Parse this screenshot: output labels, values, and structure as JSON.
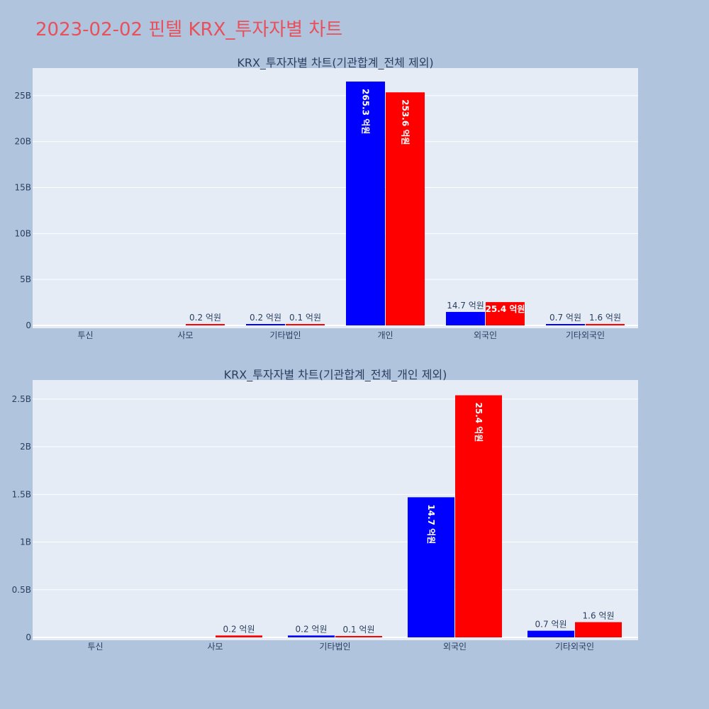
{
  "page": {
    "title": "2023-02-02 핀텔 KRX_투자자별 차트",
    "background": "#b0c4de",
    "plot_background": "#e5ecf6",
    "title_color": "#e8505b"
  },
  "colors": {
    "buy": "#0000ff",
    "sell": "#ff0000"
  },
  "chart_data": [
    {
      "type": "bar",
      "title": "KRX_투자자별 차트(기관합계_전체 제외)",
      "categories": [
        "투신",
        "사모",
        "기타법인",
        "개인",
        "외국인",
        "기타외국인"
      ],
      "series": [
        {
          "values": [
            0,
            0,
            20000000,
            26530000000,
            1470000000,
            70000000
          ],
          "labels": [
            "",
            "",
            "0.2 억원",
            "265.3 억원",
            "14.7 억원",
            "0.7 억원"
          ]
        },
        {
          "values": [
            0,
            20000000,
            10000000,
            25360000000,
            2540000000,
            160000000
          ],
          "labels": [
            "",
            "0.2 억원",
            "0.1 억원",
            "253.6 억원",
            "25.4 억원",
            "1.6 억원"
          ]
        }
      ],
      "ylim": [
        0,
        28000000000
      ],
      "yticks": [
        0,
        5000000000,
        10000000000,
        15000000000,
        20000000000,
        25000000000
      ],
      "ytick_labels": [
        "0",
        "5B",
        "10B",
        "15B",
        "20B",
        "25B"
      ],
      "grid": true
    },
    {
      "type": "bar",
      "title": "KRX_투자자별 차트(기관합계_전체_개인 제외)",
      "categories": [
        "투신",
        "사모",
        "기타법인",
        "외국인",
        "기타외국인"
      ],
      "series": [
        {
          "values": [
            0,
            0,
            20000000,
            1470000000,
            70000000
          ],
          "labels": [
            "",
            "",
            "0.2 억원",
            "14.7 억원",
            "0.7 억원"
          ]
        },
        {
          "values": [
            0,
            20000000,
            10000000,
            2540000000,
            160000000
          ],
          "labels": [
            "",
            "0.2 억원",
            "0.1 억원",
            "25.4 억원",
            "1.6 억원"
          ]
        }
      ],
      "ylim": [
        0,
        2700000000
      ],
      "yticks": [
        0,
        500000000,
        1000000000,
        1500000000,
        2000000000,
        2500000000
      ],
      "ytick_labels": [
        "0",
        "0.5B",
        "1B",
        "1.5B",
        "2B",
        "2.5B"
      ],
      "grid": true
    }
  ]
}
